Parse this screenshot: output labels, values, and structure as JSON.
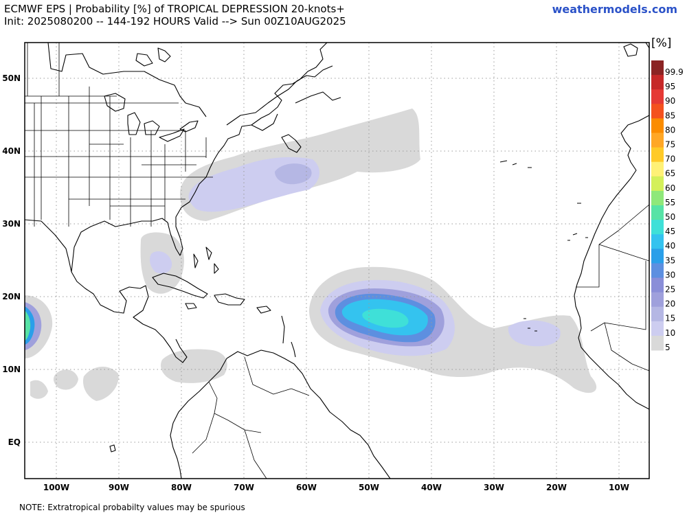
{
  "header": {
    "title_line1": "ECMWF EPS | Probability [%] of TROPICAL DEPRESSION 20-knots+",
    "title_line2": "Init: 2025080200 -- 144-192 HOURS Valid --> Sun 00Z10AUG2025",
    "brand": "weathermodels.com"
  },
  "footer": {
    "note": "NOTE: Extratropical probabilty values may be spurious"
  },
  "map": {
    "lon_labels": [
      "100W",
      "90W",
      "80W",
      "70W",
      "60W",
      "50W",
      "40W",
      "30W",
      "20W",
      "10W"
    ],
    "lat_labels": [
      "50N",
      "40N",
      "30N",
      "20N",
      "10N",
      "EQ"
    ],
    "colors": {
      "ocean": "#ffffff",
      "coast": "#000000",
      "grid": "#9a9a9a"
    }
  },
  "legend": {
    "unit": "[%]",
    "levels": [
      "99.9",
      "95",
      "90",
      "85",
      "80",
      "75",
      "70",
      "65",
      "60",
      "55",
      "50",
      "45",
      "40",
      "35",
      "30",
      "25",
      "20",
      "15",
      "10",
      "5"
    ],
    "colors": [
      "#8b2323",
      "#c62828",
      "#e53935",
      "#f4511e",
      "#fb8c00",
      "#ffa726",
      "#ffca28",
      "#fff176",
      "#d4f05a",
      "#8fe87a",
      "#57e3a6",
      "#3fe0d8",
      "#34c3ef",
      "#2a9fe9",
      "#5d8fe0",
      "#8a8ed8",
      "#9fa0dc",
      "#b5b7e4",
      "#cdcdf0",
      "#d9d9d9"
    ]
  }
}
